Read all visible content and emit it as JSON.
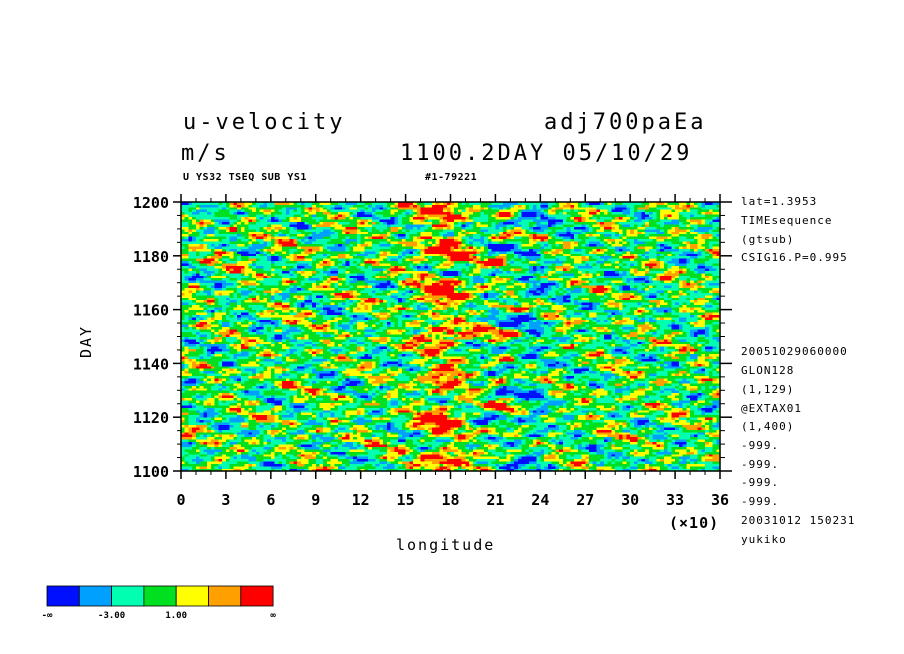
{
  "header": {
    "title_left": "u-velocity",
    "title_right": "adj700paEa",
    "units": "m/s",
    "time_label": "1100.2DAY 05/10/29",
    "sub_left": "U YS32 TSEQ SUB YS1",
    "sub_right": "#1-79221"
  },
  "side_info": [
    "lat=1.3953",
    "TIMEsequence",
    "(gtsub)",
    "CSIG16.P=0.995",
    "20051029060000",
    "GLON128",
    "(1,129)",
    "@EXTAX01",
    "(1,400)",
    "-999.",
    "-999.",
    "-999.",
    "-999.",
    "20031012 150231",
    "yukiko"
  ],
  "chart_data": {
    "type": "heatmap",
    "title": "u-velocity",
    "xlabel": "longitude",
    "ylabel": "DAY",
    "x_multiplier_label": "(×10)",
    "xlim": [
      0,
      36
    ],
    "ylim": [
      1100,
      1200
    ],
    "x_ticks": [
      "0",
      "3",
      "6",
      "9",
      "12",
      "15",
      "18",
      "21",
      "24",
      "27",
      "30",
      "33",
      "36"
    ],
    "y_ticks": [
      "1100",
      "1120",
      "1140",
      "1160",
      "1180",
      "1200"
    ],
    "colorbar": {
      "colors": [
        "#0010ff",
        "#00a0ff",
        "#00ffb0",
        "#00e020",
        "#ffff00",
        "#ffa000",
        "#ff0000"
      ],
      "labels": [
        "-∞",
        "-3.00",
        "1.00",
        "∞"
      ]
    }
  }
}
